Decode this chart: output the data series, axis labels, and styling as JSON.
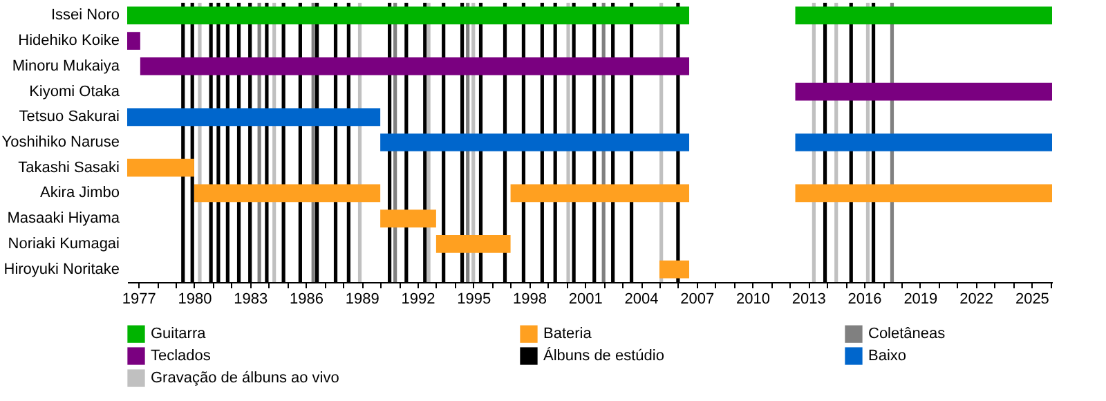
{
  "chart_data": {
    "type": "bar",
    "orientation": "horizontal",
    "legend": "bottom",
    "categories": [
      "Issei Noro",
      "Hidehiko Koike",
      "Minoru Mukaiya",
      "Kiyomi Otaka",
      "Tetsuo Sakurai",
      "Yoshihiko Naruse",
      "Takashi Sasaki",
      "Akira Jimbo",
      "Masaaki Hiyama",
      "Noriaki Kumagai",
      "Hiroyuki Noritake"
    ],
    "xlim": [
      1976.4,
      2026.1
    ],
    "xticks": [
      1977,
      {
        "value": 1978,
        "label": null
      },
      {
        "value": 1979,
        "label": null
      },
      1980,
      {
        "value": 1981,
        "label": null
      },
      {
        "value": 1982,
        "label": null
      },
      1983,
      {
        "value": 1984,
        "label": null
      },
      {
        "value": 1985,
        "label": null
      },
      1986,
      {
        "value": 1987,
        "label": null
      },
      {
        "value": 1988,
        "label": null
      },
      1989,
      {
        "value": 1990,
        "label": null
      },
      {
        "value": 1991,
        "label": null
      },
      1992,
      {
        "value": 1993,
        "label": null
      },
      {
        "value": 1994,
        "label": null
      },
      1995,
      {
        "value": 1996,
        "label": null
      },
      {
        "value": 1997,
        "label": null
      },
      1998,
      {
        "value": 1999,
        "label": null
      },
      {
        "value": 2000,
        "label": null
      },
      2001,
      {
        "value": 2002,
        "label": null
      },
      {
        "value": 2003,
        "label": null
      },
      2004,
      {
        "value": 2005,
        "label": null
      },
      {
        "value": 2006,
        "label": null
      },
      2007,
      {
        "value": 2008,
        "label": null
      },
      {
        "value": 2009,
        "label": null
      },
      2010,
      {
        "value": 2011,
        "label": null
      },
      {
        "value": 2012,
        "label": null
      },
      2013,
      {
        "value": 2014,
        "label": null
      },
      {
        "value": 2015,
        "label": null
      },
      2016,
      {
        "value": 2017,
        "label": null
      },
      {
        "value": 2018,
        "label": null
      },
      2019,
      {
        "value": 2020,
        "label": null
      },
      {
        "value": 2021,
        "label": null
      },
      2022,
      {
        "value": 2023,
        "label": null
      },
      {
        "value": 2024,
        "label": null
      },
      2025,
      {
        "value": 2026,
        "label": null
      }
    ],
    "series": [
      {
        "name": "Guitarra",
        "color": "#00b400",
        "base": [
          1976.4,
          null,
          null,
          null,
          null,
          null,
          null,
          null,
          null,
          null,
          null
        ],
        "values": [
          30.2,
          null,
          null,
          null,
          null,
          null,
          null,
          null,
          null,
          null,
          null
        ]
      },
      {
        "color": "#00b400",
        "base": [
          2012.3,
          null,
          null,
          null,
          null,
          null,
          null,
          null,
          null,
          null,
          null
        ],
        "values": [
          13.8,
          null,
          null,
          null,
          null,
          null,
          null,
          null,
          null,
          null,
          null
        ]
      },
      {
        "name": "Teclados",
        "color": "#7a0080",
        "base": [
          null,
          1976.4,
          1977.1,
          2012.3,
          null,
          null,
          null,
          null,
          null,
          null,
          null
        ],
        "values": [
          null,
          0.7,
          29.5,
          13.8,
          null,
          null,
          null,
          null,
          null,
          null,
          null
        ]
      },
      {
        "name": "Baixo",
        "color": "#0066cc",
        "base": [
          null,
          null,
          null,
          null,
          1976.4,
          1990,
          null,
          null,
          null,
          null,
          null
        ],
        "values": [
          null,
          null,
          null,
          null,
          13.6,
          16.6,
          null,
          null,
          null,
          null,
          null
        ]
      },
      {
        "color": "#0066cc",
        "base": [
          null,
          null,
          null,
          null,
          null,
          2012.3,
          null,
          null,
          null,
          null,
          null
        ],
        "values": [
          null,
          null,
          null,
          null,
          null,
          13.8,
          null,
          null,
          null,
          null,
          null
        ]
      },
      {
        "name": "Bateria",
        "color": "#ffa020",
        "base": [
          null,
          null,
          null,
          null,
          null,
          null,
          1976.4,
          1980,
          1990,
          1993,
          2005
        ],
        "values": [
          null,
          null,
          null,
          null,
          null,
          null,
          3.6,
          10,
          3,
          4,
          1.6
        ]
      },
      {
        "color": "#ffa020",
        "base": [
          null,
          null,
          null,
          null,
          null,
          null,
          null,
          1997,
          null,
          null,
          null
        ],
        "values": [
          null,
          null,
          null,
          null,
          null,
          null,
          null,
          9.6,
          null,
          null,
          null
        ]
      },
      {
        "color": "#ffa020",
        "base": [
          null,
          null,
          null,
          null,
          null,
          null,
          null,
          2012.3,
          null,
          null,
          null
        ],
        "values": [
          null,
          null,
          null,
          null,
          null,
          null,
          null,
          13.8,
          null,
          null,
          null
        ]
      }
    ],
    "ref_lines": [
      {
        "axis": "x",
        "value": 1979.4,
        "color": "#000000",
        "label": "Álbuns de estúdio"
      },
      {
        "axis": "x",
        "value": 1979.9,
        "color": "#000000"
      },
      {
        "axis": "x",
        "value": 1980.3,
        "color": "#c0c0c0",
        "label": "Gravação de álbuns ao vivo"
      },
      {
        "axis": "x",
        "value": 1980.9,
        "color": "#000000"
      },
      {
        "axis": "x",
        "value": 1981.3,
        "color": "#000000"
      },
      {
        "axis": "x",
        "value": 1981.8,
        "color": "#000000"
      },
      {
        "axis": "x",
        "value": 1982.4,
        "color": "#000000"
      },
      {
        "axis": "x",
        "value": 1983.0,
        "color": "#000000"
      },
      {
        "axis": "x",
        "value": 1983.5,
        "color": "#808080",
        "label": "Coletâneas"
      },
      {
        "axis": "x",
        "value": 1983.9,
        "color": "#000000"
      },
      {
        "axis": "x",
        "value": 1984.3,
        "color": "#c0c0c0"
      },
      {
        "axis": "x",
        "value": 1984.8,
        "color": "#000000"
      },
      {
        "axis": "x",
        "value": 1985.7,
        "color": "#000000"
      },
      {
        "axis": "x",
        "value": 1986.4,
        "color": "#808080"
      },
      {
        "axis": "x",
        "value": 1986.6,
        "color": "#000000"
      },
      {
        "axis": "x",
        "value": 1987.6,
        "color": "#000000"
      },
      {
        "axis": "x",
        "value": 1988.3,
        "color": "#000000"
      },
      {
        "axis": "x",
        "value": 1988.9,
        "color": "#c0c0c0"
      },
      {
        "axis": "x",
        "value": 1990.5,
        "color": "#000000"
      },
      {
        "axis": "x",
        "value": 1990.8,
        "color": "#808080"
      },
      {
        "axis": "x",
        "value": 1991.4,
        "color": "#000000"
      },
      {
        "axis": "x",
        "value": 1992.4,
        "color": "#000000"
      },
      {
        "axis": "x",
        "value": 1992.6,
        "color": "#c0c0c0"
      },
      {
        "axis": "x",
        "value": 1993.4,
        "color": "#000000"
      },
      {
        "axis": "x",
        "value": 1994.4,
        "color": "#000000"
      },
      {
        "axis": "x",
        "value": 1994.7,
        "color": "#808080"
      },
      {
        "axis": "x",
        "value": 1995.0,
        "color": "#c0c0c0"
      },
      {
        "axis": "x",
        "value": 1995.4,
        "color": "#000000"
      },
      {
        "axis": "x",
        "value": 1996.7,
        "color": "#000000"
      },
      {
        "axis": "x",
        "value": 1997.7,
        "color": "#000000"
      },
      {
        "axis": "x",
        "value": 1998.7,
        "color": "#000000"
      },
      {
        "axis": "x",
        "value": 1999.4,
        "color": "#000000"
      },
      {
        "axis": "x",
        "value": 2000.1,
        "color": "#c0c0c0"
      },
      {
        "axis": "x",
        "value": 2000.4,
        "color": "#000000"
      },
      {
        "axis": "x",
        "value": 2001.5,
        "color": "#000000"
      },
      {
        "axis": "x",
        "value": 2002.0,
        "color": "#808080"
      },
      {
        "axis": "x",
        "value": 2002.5,
        "color": "#000000"
      },
      {
        "axis": "x",
        "value": 2003.5,
        "color": "#000000"
      },
      {
        "axis": "x",
        "value": 2005.1,
        "color": "#c0c0c0"
      },
      {
        "axis": "x",
        "value": 2006.0,
        "color": "#000000"
      },
      {
        "axis": "x",
        "value": 2013.3,
        "color": "#c0c0c0"
      },
      {
        "axis": "x",
        "value": 2013.9,
        "color": "#000000"
      },
      {
        "axis": "x",
        "value": 2014.5,
        "color": "#c0c0c0"
      },
      {
        "axis": "x",
        "value": 2015.3,
        "color": "#000000"
      },
      {
        "axis": "x",
        "value": 2016.2,
        "color": "#c0c0c0"
      },
      {
        "axis": "x",
        "value": 2016.5,
        "color": "#000000"
      },
      {
        "axis": "x",
        "value": 2017.5,
        "color": "#808080"
      }
    ]
  }
}
